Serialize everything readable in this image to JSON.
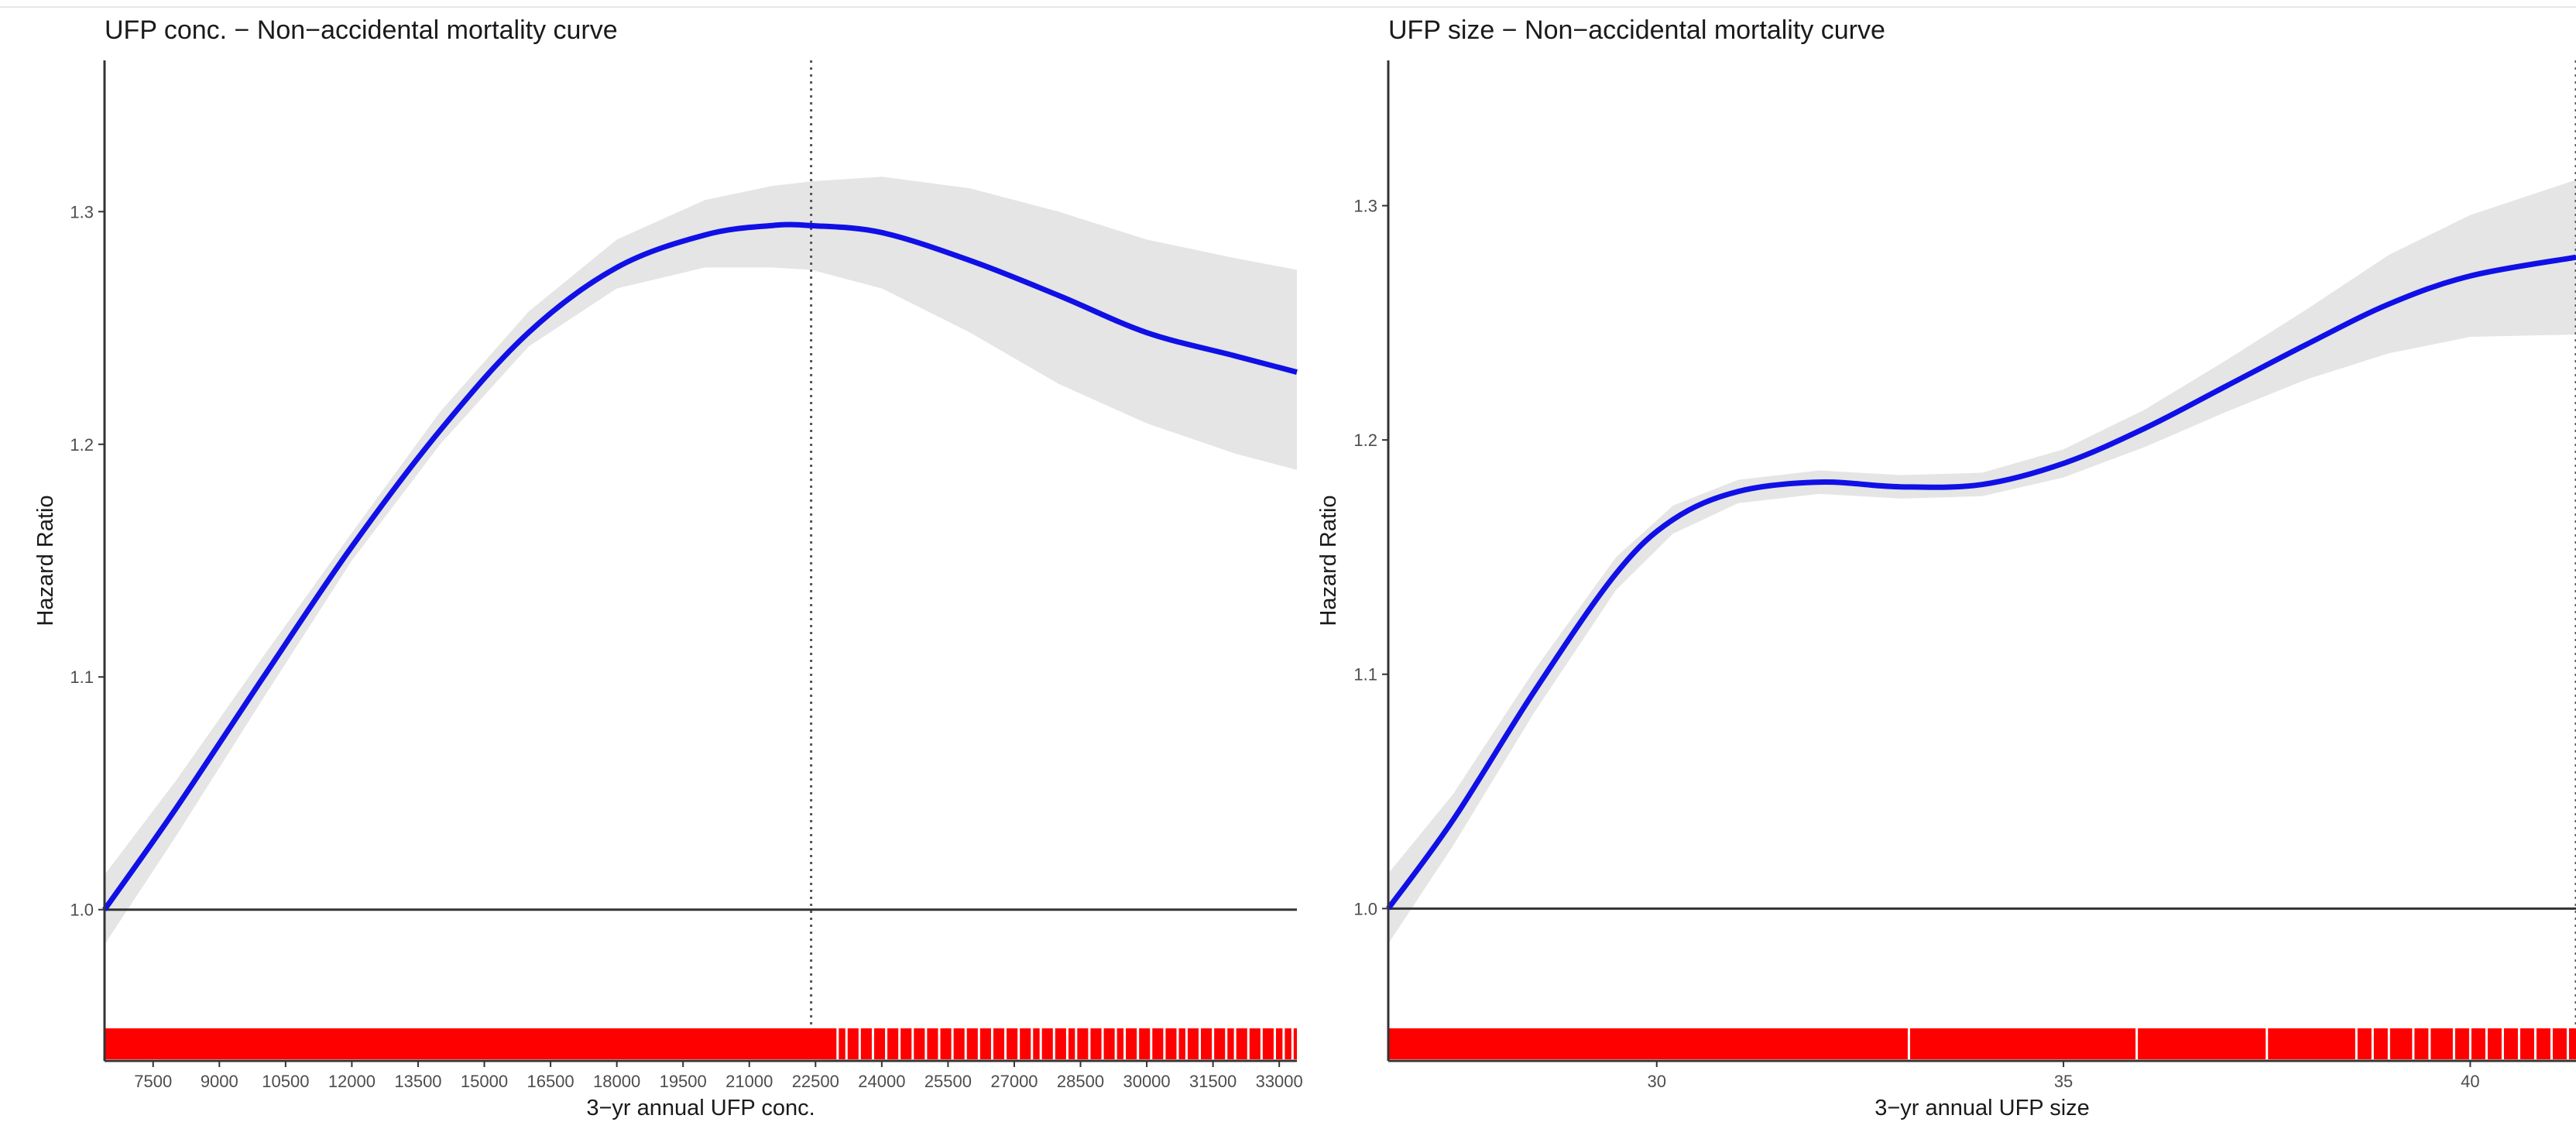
{
  "chart_data": [
    {
      "type": "line",
      "title": "UFP conc. − Non−accidental mortality curve",
      "xlabel": "3−yr annual UFP conc.",
      "ylabel": "Hazard Ratio",
      "xlim": [
        6400,
        33400
      ],
      "ylim": [
        0.935,
        1.365
      ],
      "x_ticks": [
        "7500",
        "9000",
        "10500",
        "12000",
        "13500",
        "15000",
        "16500",
        "18000",
        "19500",
        "21000",
        "22500",
        "24000",
        "25500",
        "27000",
        "28500",
        "30000",
        "31500",
        "33000"
      ],
      "y_ticks": [
        "1.0",
        "1.1",
        "1.2",
        "1.3"
      ],
      "reference_line_y": 1.0,
      "vertical_marker_x": 22400,
      "grid": false,
      "series": [
        {
          "x": [
            6400,
            8000,
            10000,
            12000,
            14000,
            16000,
            18000,
            20000,
            21500,
            22400,
            24000,
            26000,
            28000,
            30000,
            32000,
            33400
          ],
          "y": [
            1.0,
            1.043,
            1.1,
            1.156,
            1.206,
            1.248,
            1.276,
            1.29,
            1.294,
            1.294,
            1.291,
            1.279,
            1.264,
            1.248,
            1.238,
            1.231
          ],
          "lower": [
            0.985,
            1.031,
            1.091,
            1.15,
            1.2,
            1.242,
            1.267,
            1.276,
            1.276,
            1.275,
            1.267,
            1.248,
            1.226,
            1.209,
            1.196,
            1.189
          ],
          "upper": [
            1.015,
            1.055,
            1.109,
            1.162,
            1.214,
            1.257,
            1.288,
            1.305,
            1.311,
            1.313,
            1.315,
            1.31,
            1.3,
            1.288,
            1.28,
            1.275
          ]
        }
      ],
      "rug_x": [
        23000,
        23200,
        23500,
        23800,
        24100,
        24400,
        24700,
        25000,
        25300,
        25600,
        25900,
        26200,
        26500,
        26800,
        27100,
        27400,
        27600,
        27900,
        28200,
        28400,
        28700,
        29000,
        29300,
        29500,
        29800,
        30100,
        30400,
        30700,
        30900,
        31200,
        31500,
        31800,
        32000,
        32300,
        32600,
        32900,
        33100,
        33300
      ]
    },
    {
      "type": "line",
      "title": "UFP size − Non−accidental mortality curve",
      "xlabel": "3−yr annual UFP size",
      "ylabel": "Hazard Ratio",
      "xlim": [
        26.7,
        41.3
      ],
      "ylim": [
        0.935,
        1.362
      ],
      "x_ticks": [
        "30",
        "35",
        "40"
      ],
      "y_ticks": [
        "1.0",
        "1.1",
        "1.2",
        "1.3"
      ],
      "reference_line_y": 1.0,
      "vertical_marker_x": 41.3,
      "grid": false,
      "series": [
        {
          "x": [
            26.7,
            27.5,
            28.5,
            29.5,
            30.2,
            31.0,
            32.0,
            33.0,
            34.0,
            35.0,
            36.0,
            37.0,
            38.0,
            39.0,
            40.0,
            41.3
          ],
          "y": [
            1.0,
            1.038,
            1.093,
            1.143,
            1.166,
            1.178,
            1.182,
            1.18,
            1.181,
            1.19,
            1.205,
            1.223,
            1.241,
            1.258,
            1.27,
            1.278
          ],
          "lower": [
            0.985,
            1.027,
            1.084,
            1.136,
            1.16,
            1.173,
            1.177,
            1.175,
            1.176,
            1.184,
            1.197,
            1.212,
            1.226,
            1.237,
            1.244,
            1.245
          ],
          "upper": [
            1.015,
            1.049,
            1.102,
            1.15,
            1.172,
            1.183,
            1.187,
            1.185,
            1.186,
            1.196,
            1.213,
            1.234,
            1.256,
            1.279,
            1.296,
            1.311
          ]
        }
      ],
      "rug_x": [
        33.1,
        35.9,
        37.5,
        38.6,
        38.8,
        39.0,
        39.3,
        39.5,
        39.8,
        40.0,
        40.2,
        40.4,
        40.6,
        40.8,
        41.0,
        41.2
      ]
    }
  ],
  "colors": {
    "line": "#1010e6",
    "ribbon": "#e5e5e5",
    "rug": "#ff0000",
    "axis": "#333333",
    "reference": "#333333",
    "text": "#1a1a1a"
  }
}
